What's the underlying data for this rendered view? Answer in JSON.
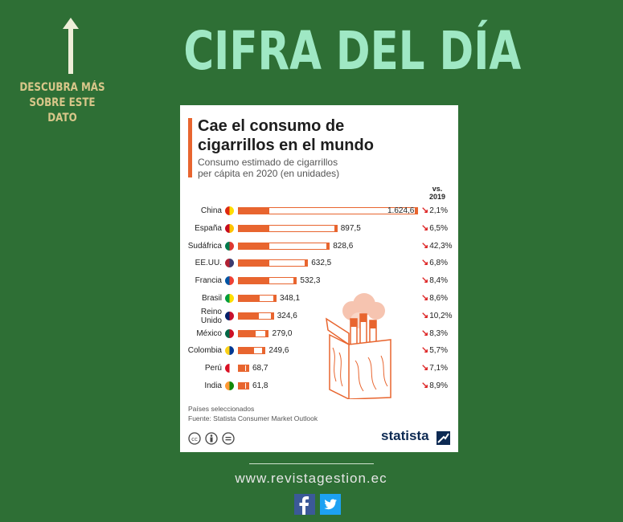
{
  "header": {
    "side_note_line1": "DESCUBRA MÁS",
    "side_note_line2": "SOBRE ESTE DATO",
    "headline": "CIFRA DEL DÍA"
  },
  "chart_data": {
    "type": "bar",
    "title": "Cae el consumo de cigarrillos en el mundo",
    "title_line1": "Cae el consumo de",
    "title_line2": "cigarrillos en el mundo",
    "subtitle_line1": "Consumo estimado de cigarrillos",
    "subtitle_line2": "per cápita en 2020 (en unidades)",
    "change_header_line1": "vs.",
    "change_header_line2": "2019",
    "xlim": [
      0,
      1624.6
    ],
    "rows": [
      {
        "country": "China",
        "value": 1624.6,
        "label": "1.624,6",
        "change": "2,1%",
        "flag": "flag-cn-icon",
        "colors": [
          "#de2910",
          "#ffde00"
        ]
      },
      {
        "country": "España",
        "value": 897.5,
        "label": "897,5",
        "change": "6,5%",
        "flag": "flag-es-icon",
        "colors": [
          "#c60b1e",
          "#ffc400"
        ]
      },
      {
        "country": "Sudáfrica",
        "value": 828.6,
        "label": "828,6",
        "change": "42,3%",
        "flag": "flag-za-icon",
        "colors": [
          "#007a4d",
          "#de3831"
        ]
      },
      {
        "country": "EE.UU.",
        "value": 632.5,
        "label": "632,5",
        "change": "6,8%",
        "flag": "flag-us-icon",
        "colors": [
          "#b22234",
          "#3c3b6e"
        ]
      },
      {
        "country": "Francia",
        "value": 532.3,
        "label": "532,3",
        "change": "8,4%",
        "flag": "flag-fr-icon",
        "colors": [
          "#0055a4",
          "#ef4135"
        ]
      },
      {
        "country": "Brasil",
        "value": 348.1,
        "label": "348,1",
        "change": "8,6%",
        "flag": "flag-br-icon",
        "colors": [
          "#009c3b",
          "#ffdf00"
        ]
      },
      {
        "country_line1": "Reino",
        "country_line2": "Unido",
        "value": 324.6,
        "label": "324,6",
        "change": "10,2%",
        "flag": "flag-gb-icon",
        "colors": [
          "#012169",
          "#c8102e"
        ]
      },
      {
        "country": "México",
        "value": 279.0,
        "label": "279,0",
        "change": "8,3%",
        "flag": "flag-mx-icon",
        "colors": [
          "#006847",
          "#ce1126"
        ]
      },
      {
        "country": "Colombia",
        "value": 249.6,
        "label": "249,6",
        "change": "5,7%",
        "flag": "flag-co-icon",
        "colors": [
          "#fcd116",
          "#003893"
        ]
      },
      {
        "country": "Perú",
        "value": 68.7,
        "label": "68,7",
        "change": "7,1%",
        "flag": "flag-pe-icon",
        "colors": [
          "#d91023",
          "#ffffff"
        ]
      },
      {
        "country": "India",
        "value": 61.8,
        "label": "61,8",
        "change": "8,9%",
        "flag": "flag-in-icon",
        "colors": [
          "#ff9933",
          "#138808"
        ]
      }
    ],
    "notes_line1": "Países seleccionados",
    "notes_line2": "Fuente: Statista Consumer Market Outlook",
    "brand": "statista",
    "bar_color": "#e8652f"
  },
  "footer": {
    "site": "www.revistagestion.ec",
    "facebook_icon": "facebook-icon",
    "twitter_icon": "twitter-icon"
  },
  "colors": {
    "background": "#2e6f35",
    "headline": "#9fe8c4",
    "side_note": "#d9c78a",
    "accent": "#e8652f"
  }
}
